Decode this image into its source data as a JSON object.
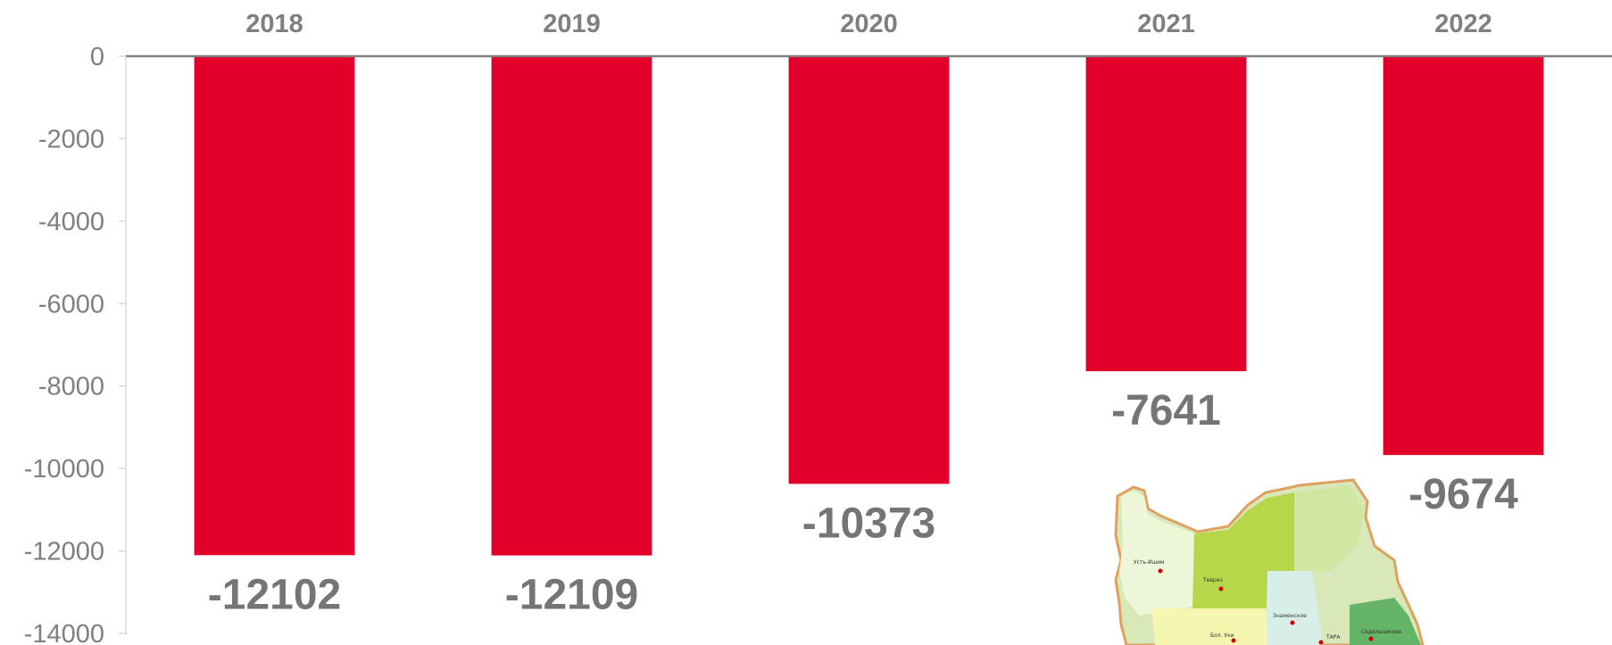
{
  "chart_data": {
    "type": "bar",
    "title": "",
    "xlabel": "",
    "ylabel": "",
    "categories": [
      "2018",
      "2019",
      "2020",
      "2021",
      "2022"
    ],
    "values": [
      -12102,
      -12109,
      -10373,
      -7641,
      -9674
    ],
    "data_labels": [
      "-12102",
      "-12109",
      "-10373",
      "-7641",
      "-9674"
    ],
    "ylim": [
      -14000,
      0
    ],
    "yticks": [
      0,
      -2000,
      -4000,
      -6000,
      -8000,
      -10000,
      -12000,
      -14000
    ],
    "ytick_labels": [
      "0",
      "-2000",
      "-4000",
      "-6000",
      "-8000",
      "-10000",
      "-12000",
      "-14000"
    ],
    "category_axis_position": "top",
    "grid": false,
    "legend": "none",
    "bar_color": "#e2002a",
    "axis_color": "#808080",
    "label_color": "#7f7f7f"
  },
  "map_inset": {
    "place_labels": [
      "Усть-Ишим",
      "Тевриз",
      "Знаменское",
      "Седельниково",
      "Бол. Уки",
      "ТАРА"
    ]
  }
}
